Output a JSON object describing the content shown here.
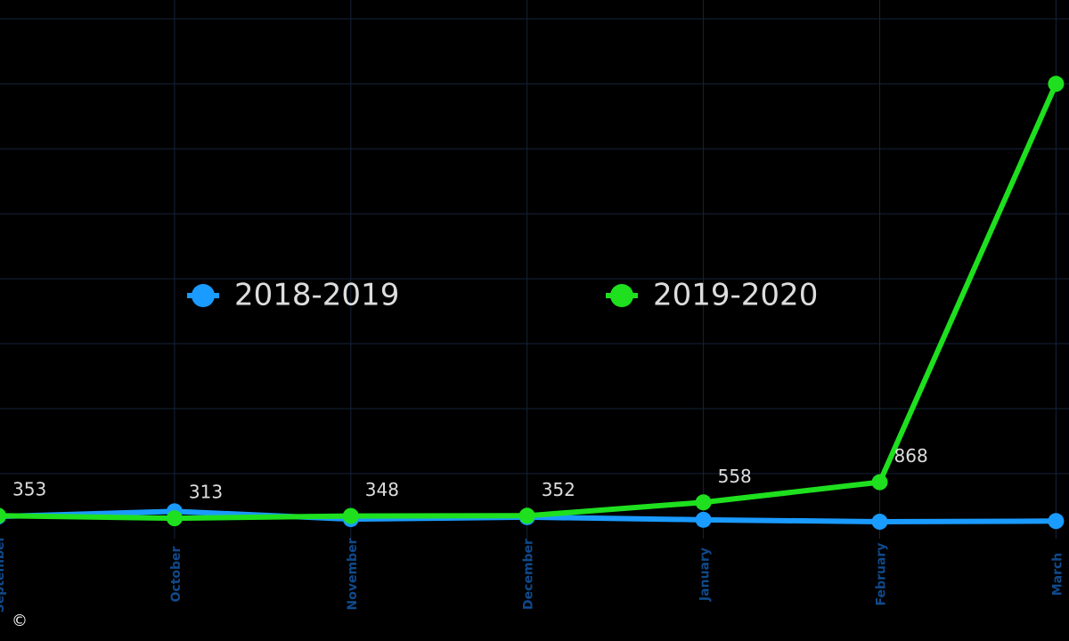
{
  "chart_data": {
    "type": "line",
    "categories": [
      "September",
      "October",
      "November",
      "December",
      "January",
      "February",
      "March"
    ],
    "series": [
      {
        "name": "2018-2019",
        "color": "#1a9bff",
        "values": [
          340,
          420,
          300,
          330,
          290,
          260,
          270
        ]
      },
      {
        "name": "2019-2020",
        "color": "#1ee01e",
        "values": [
          353,
          313,
          348,
          352,
          558,
          868,
          7000
        ],
        "value_labels": [
          "353",
          "313",
          "348",
          "352",
          "558",
          "868",
          null
        ]
      }
    ],
    "ylim": [
      0,
      8290
    ],
    "yticks": [
      1000,
      2000,
      3000,
      4000,
      5000,
      6000,
      7000,
      8000
    ],
    "grid": true,
    "copyright": "©"
  }
}
